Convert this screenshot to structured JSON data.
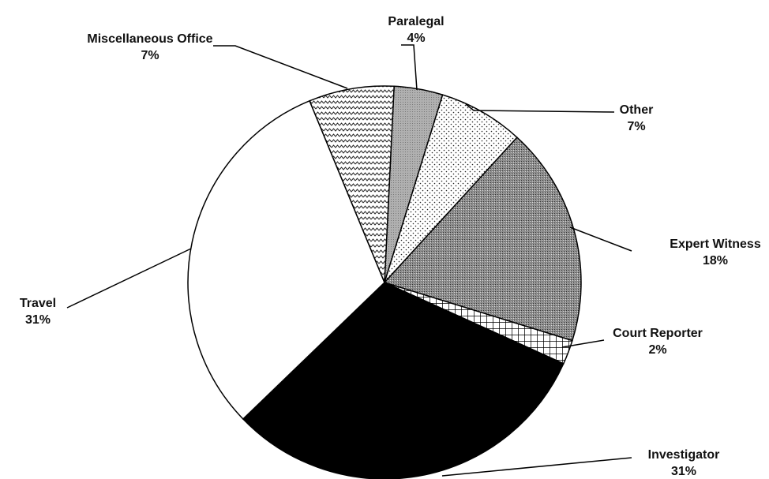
{
  "chart_data": {
    "type": "pie",
    "categories": [
      "Paralegal",
      "Other",
      "Expert Witness",
      "Court Reporter",
      "Investigator",
      "Travel",
      "Miscellaneous Office"
    ],
    "values": [
      4,
      7,
      18,
      2,
      31,
      31,
      7
    ],
    "value_labels": [
      "4%",
      "7%",
      "18%",
      "2%",
      "31%",
      "31%",
      "7%"
    ],
    "colors": [
      "#aaaaaa",
      "#ffffff",
      "#8c8c8c",
      "#ffffff",
      "#000000",
      "#ffffff",
      "#ffffff"
    ]
  }
}
